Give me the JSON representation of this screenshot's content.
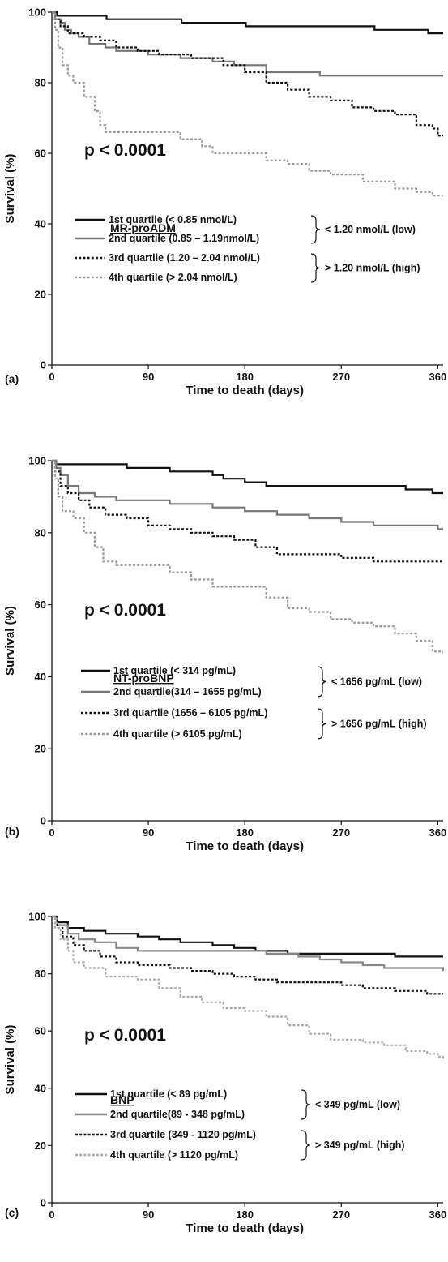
{
  "chart_data": [
    {
      "type": "line",
      "panel_label": "(a)",
      "xlabel": "Time to death (days)",
      "ylabel": "Survival (%)",
      "xlim": [
        0,
        365
      ],
      "ylim": [
        0,
        100
      ],
      "x_ticks": [
        0,
        90,
        180,
        270,
        360
      ],
      "y_ticks": [
        0,
        20,
        40,
        60,
        80,
        100
      ],
      "annotation": "p < 0.0001",
      "legend_title": "MR-proADM",
      "series": [
        {
          "name": "1st quartile (< 0.85 nmol/L)",
          "color": "#111111",
          "dash": "solid",
          "points": [
            [
              0,
              100
            ],
            [
              5,
              99
            ],
            [
              50,
              99
            ],
            [
              51,
              98
            ],
            [
              120,
              98
            ],
            [
              121,
              97
            ],
            [
              180,
              97
            ],
            [
              181,
              96
            ],
            [
              300,
              96
            ],
            [
              301,
              95
            ],
            [
              350,
              95
            ],
            [
              351,
              94
            ],
            [
              365,
              94
            ]
          ]
        },
        {
          "name": "2nd quartile (0.85 – 1.19nmol/L)",
          "color": "#777777",
          "dash": "solid",
          "points": [
            [
              0,
              100
            ],
            [
              3,
              98
            ],
            [
              8,
              97
            ],
            [
              12,
              95
            ],
            [
              18,
              94
            ],
            [
              25,
              93
            ],
            [
              35,
              91
            ],
            [
              50,
              90
            ],
            [
              60,
              89
            ],
            [
              90,
              88
            ],
            [
              120,
              87
            ],
            [
              150,
              86
            ],
            [
              170,
              85
            ],
            [
              200,
              83
            ],
            [
              250,
              82
            ],
            [
              365,
              82
            ]
          ]
        },
        {
          "name": "3rd quartile (1.20 – 2.04 nmol/L)",
          "color": "#111111",
          "dash": "dotted",
          "points": [
            [
              0,
              100
            ],
            [
              3,
              98
            ],
            [
              8,
              96
            ],
            [
              15,
              94
            ],
            [
              30,
              93
            ],
            [
              45,
              92
            ],
            [
              60,
              90
            ],
            [
              80,
              89
            ],
            [
              100,
              88
            ],
            [
              130,
              87
            ],
            [
              160,
              85
            ],
            [
              180,
              83
            ],
            [
              200,
              80
            ],
            [
              220,
              78
            ],
            [
              240,
              76
            ],
            [
              260,
              75
            ],
            [
              280,
              73
            ],
            [
              300,
              72
            ],
            [
              320,
              71
            ],
            [
              340,
              68
            ],
            [
              355,
              67
            ],
            [
              360,
              65
            ],
            [
              365,
              65
            ]
          ]
        },
        {
          "name": "4th quartile (> 2.04 nmol/L)",
          "color": "#999999",
          "dash": "dotted",
          "points": [
            [
              0,
              100
            ],
            [
              3,
              95
            ],
            [
              6,
              90
            ],
            [
              10,
              85
            ],
            [
              15,
              82
            ],
            [
              20,
              80
            ],
            [
              30,
              76
            ],
            [
              40,
              72
            ],
            [
              45,
              68
            ],
            [
              50,
              66
            ],
            [
              80,
              66
            ],
            [
              110,
              66
            ],
            [
              120,
              64
            ],
            [
              140,
              62
            ],
            [
              150,
              60
            ],
            [
              180,
              60
            ],
            [
              200,
              58
            ],
            [
              220,
              57
            ],
            [
              240,
              55
            ],
            [
              260,
              54
            ],
            [
              290,
              52
            ],
            [
              320,
              50
            ],
            [
              340,
              49
            ],
            [
              355,
              48
            ],
            [
              365,
              48
            ]
          ]
        }
      ],
      "groups": [
        {
          "label": "< 1.20 nmol/L (low)",
          "members": [
            0,
            1
          ]
        },
        {
          "label": "> 1.20 nmol/L (high)",
          "members": [
            2,
            3
          ]
        }
      ]
    },
    {
      "type": "line",
      "panel_label": "(b)",
      "xlabel": "Time to death (days)",
      "ylabel": "Survival (%)",
      "xlim": [
        0,
        365
      ],
      "ylim": [
        0,
        100
      ],
      "x_ticks": [
        0,
        90,
        180,
        270,
        360
      ],
      "y_ticks": [
        0,
        20,
        40,
        60,
        80,
        100
      ],
      "annotation": "p < 0.0001",
      "legend_title": "NT-proBNP",
      "series": [
        {
          "name": "1st quartile (< 314 pg/mL)",
          "color": "#111111",
          "dash": "solid",
          "points": [
            [
              0,
              100
            ],
            [
              4,
              99
            ],
            [
              60,
              99
            ],
            [
              70,
              98
            ],
            [
              100,
              98
            ],
            [
              110,
              97
            ],
            [
              140,
              97
            ],
            [
              150,
              96
            ],
            [
              160,
              95
            ],
            [
              180,
              94
            ],
            [
              200,
              93
            ],
            [
              300,
              93
            ],
            [
              330,
              92
            ],
            [
              355,
              91
            ],
            [
              365,
              91
            ]
          ]
        },
        {
          "name": "2nd quartile(314 – 1655 pg/mL)",
          "color": "#777777",
          "dash": "solid",
          "points": [
            [
              0,
              100
            ],
            [
              4,
              98
            ],
            [
              8,
              96
            ],
            [
              15,
              93
            ],
            [
              25,
              91
            ],
            [
              40,
              90
            ],
            [
              60,
              89
            ],
            [
              90,
              89
            ],
            [
              110,
              88
            ],
            [
              150,
              87
            ],
            [
              180,
              86
            ],
            [
              210,
              85
            ],
            [
              240,
              84
            ],
            [
              270,
              83
            ],
            [
              300,
              82
            ],
            [
              360,
              81
            ],
            [
              365,
              81
            ]
          ]
        },
        {
          "name": "3rd quartile (1656 – 6105 pg/mL)",
          "color": "#111111",
          "dash": "dotted",
          "points": [
            [
              0,
              100
            ],
            [
              3,
              97
            ],
            [
              8,
              93
            ],
            [
              15,
              91
            ],
            [
              25,
              89
            ],
            [
              35,
              87
            ],
            [
              50,
              85
            ],
            [
              70,
              84
            ],
            [
              90,
              82
            ],
            [
              110,
              81
            ],
            [
              130,
              80
            ],
            [
              150,
              79
            ],
            [
              170,
              78
            ],
            [
              190,
              76
            ],
            [
              210,
              74
            ],
            [
              240,
              74
            ],
            [
              270,
              73
            ],
            [
              300,
              72
            ],
            [
              365,
              72
            ]
          ]
        },
        {
          "name": "4th quartile (> 6105 pg/mL)",
          "color": "#999999",
          "dash": "dotted",
          "points": [
            [
              0,
              100
            ],
            [
              3,
              95
            ],
            [
              6,
              90
            ],
            [
              10,
              86
            ],
            [
              20,
              84
            ],
            [
              30,
              80
            ],
            [
              40,
              76
            ],
            [
              48,
              72
            ],
            [
              60,
              71
            ],
            [
              90,
              71
            ],
            [
              110,
              69
            ],
            [
              130,
              67
            ],
            [
              150,
              65
            ],
            [
              180,
              65
            ],
            [
              200,
              62
            ],
            [
              220,
              59
            ],
            [
              240,
              58
            ],
            [
              260,
              56
            ],
            [
              280,
              55
            ],
            [
              300,
              54
            ],
            [
              320,
              52
            ],
            [
              340,
              50
            ],
            [
              355,
              47
            ],
            [
              365,
              47
            ]
          ]
        }
      ],
      "groups": [
        {
          "label": "< 1656 pg/mL (low)",
          "members": [
            0,
            1
          ]
        },
        {
          "label": "> 1656 pg/mL (high)",
          "members": [
            2,
            3
          ]
        }
      ]
    },
    {
      "type": "line",
      "panel_label": "(c)",
      "xlabel": "Time to death (days)",
      "ylabel": "Survival (%)",
      "xlim": [
        0,
        365
      ],
      "ylim": [
        0,
        100
      ],
      "x_ticks": [
        0,
        90,
        180,
        270,
        360
      ],
      "y_ticks": [
        0,
        20,
        40,
        60,
        80,
        100
      ],
      "annotation": "p < 0.0001",
      "legend_title": "BNP",
      "series": [
        {
          "name": "1st quartile (< 89 pg/mL)",
          "color": "#111111",
          "dash": "solid",
          "points": [
            [
              0,
              100
            ],
            [
              5,
              98
            ],
            [
              15,
              96
            ],
            [
              30,
              95
            ],
            [
              50,
              94
            ],
            [
              80,
              93
            ],
            [
              100,
              92
            ],
            [
              120,
              91
            ],
            [
              150,
              90
            ],
            [
              170,
              89
            ],
            [
              190,
              88
            ],
            [
              220,
              87
            ],
            [
              300,
              87
            ],
            [
              320,
              86
            ],
            [
              365,
              86
            ]
          ]
        },
        {
          "name": "2nd quartile(89 - 348 pg/mL)",
          "color": "#888888",
          "dash": "solid",
          "points": [
            [
              0,
              100
            ],
            [
              5,
              97
            ],
            [
              15,
              94
            ],
            [
              25,
              92
            ],
            [
              40,
              91
            ],
            [
              60,
              89
            ],
            [
              80,
              88
            ],
            [
              180,
              88
            ],
            [
              200,
              87
            ],
            [
              230,
              86
            ],
            [
              250,
              85
            ],
            [
              270,
              84
            ],
            [
              290,
              83
            ],
            [
              310,
              82
            ],
            [
              360,
              82
            ],
            [
              365,
              81
            ]
          ]
        },
        {
          "name": "3rd quartile (349 - 1120 pg/mL)",
          "color": "#111111",
          "dash": "dotted",
          "points": [
            [
              0,
              100
            ],
            [
              5,
              96
            ],
            [
              10,
              93
            ],
            [
              20,
              90
            ],
            [
              30,
              88
            ],
            [
              45,
              86
            ],
            [
              60,
              84
            ],
            [
              80,
              83
            ],
            [
              110,
              82
            ],
            [
              130,
              81
            ],
            [
              150,
              80
            ],
            [
              170,
              79
            ],
            [
              190,
              78
            ],
            [
              210,
              77
            ],
            [
              250,
              77
            ],
            [
              270,
              76
            ],
            [
              290,
              75
            ],
            [
              320,
              74
            ],
            [
              350,
              73
            ],
            [
              365,
              73
            ]
          ]
        },
        {
          "name": "4th quartile (> 1120 pg/mL)",
          "color": "#aaaaaa",
          "dash": "dotted",
          "points": [
            [
              0,
              100
            ],
            [
              3,
              96
            ],
            [
              8,
              92
            ],
            [
              15,
              88
            ],
            [
              20,
              84
            ],
            [
              30,
              82
            ],
            [
              50,
              79
            ],
            [
              80,
              78
            ],
            [
              100,
              75
            ],
            [
              120,
              72
            ],
            [
              140,
              70
            ],
            [
              160,
              68
            ],
            [
              180,
              67
            ],
            [
              200,
              65
            ],
            [
              220,
              62
            ],
            [
              240,
              59
            ],
            [
              260,
              57
            ],
            [
              290,
              56
            ],
            [
              310,
              55
            ],
            [
              330,
              53
            ],
            [
              350,
              52
            ],
            [
              360,
              51
            ],
            [
              365,
              50
            ]
          ]
        }
      ],
      "groups": [
        {
          "label": "< 349 pg/mL (low)",
          "members": [
            0,
            1
          ]
        },
        {
          "label": "> 349 pg/mL (high)",
          "members": [
            2,
            3
          ]
        }
      ]
    }
  ]
}
